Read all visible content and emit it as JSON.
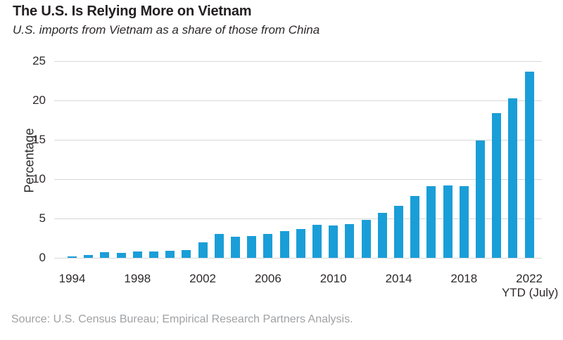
{
  "header": {
    "title": "The U.S. Is Relying More on Vietnam",
    "subtitle": "U.S. imports from Vietnam as a share of those from China"
  },
  "chart_data": {
    "type": "bar",
    "title": "The U.S. Is Relying More on Vietnam",
    "subtitle": "U.S. imports from Vietnam as a share of those from China",
    "ylabel": "Percentage",
    "xlabel": "",
    "ylim": [
      0,
      25
    ],
    "yticks": [
      0,
      5,
      10,
      15,
      20,
      25
    ],
    "grid": "horizontal",
    "legend": "none",
    "categories": [
      "1994",
      "1995",
      "1996",
      "1997",
      "1998",
      "1999",
      "2000",
      "2001",
      "2002",
      "2003",
      "2004",
      "2005",
      "2006",
      "2007",
      "2008",
      "2009",
      "2010",
      "2011",
      "2012",
      "2013",
      "2014",
      "2015",
      "2016",
      "2017",
      "2018",
      "2019",
      "2020",
      "2021",
      "2022"
    ],
    "values": [
      0.2,
      0.4,
      0.7,
      0.6,
      0.8,
      0.8,
      0.9,
      1.0,
      2.0,
      3.0,
      2.7,
      2.8,
      3.0,
      3.4,
      3.7,
      4.2,
      4.1,
      4.3,
      4.8,
      5.7,
      6.6,
      7.9,
      9.1,
      9.2,
      9.1,
      14.9,
      18.4,
      20.3,
      23.7
    ],
    "xticks": [
      "1994",
      "1998",
      "2002",
      "2006",
      "2010",
      "2014",
      "2018",
      "2022"
    ],
    "xtick_note": "YTD (July)",
    "colors": {
      "bar": "#1a9ed8",
      "grid": "#d8d8d8",
      "axis_text": "#2e2a2b",
      "title_text": "#231f20",
      "source_text": "#9fa1a4"
    }
  },
  "footer": {
    "source": "Source: U.S. Census Bureau; Empirical Research Partners Analysis."
  }
}
